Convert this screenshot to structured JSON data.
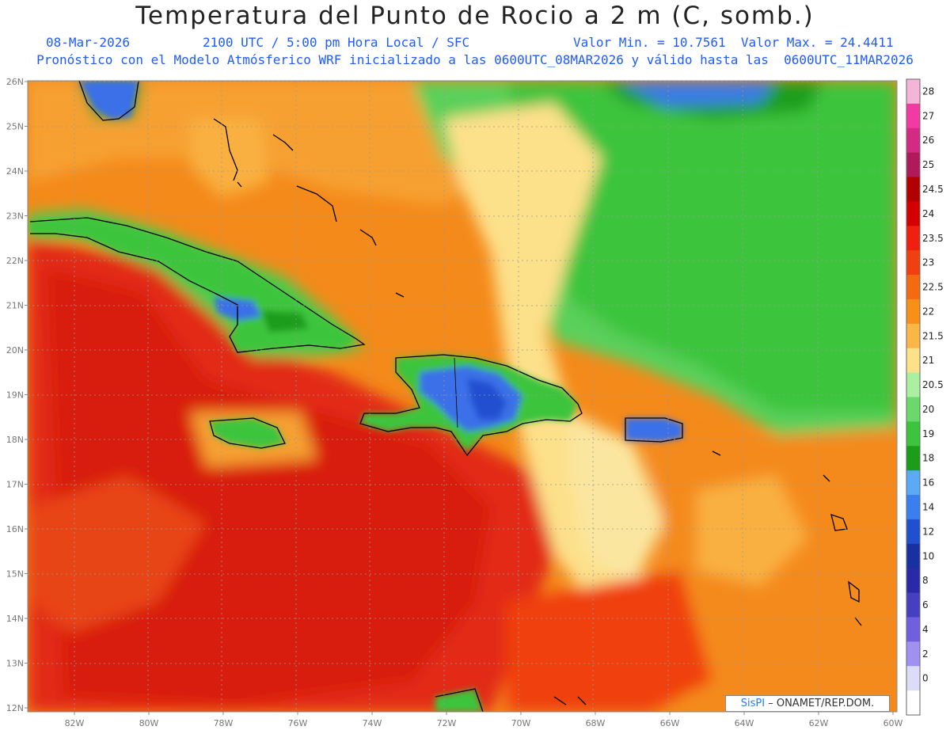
{
  "title": "Temperatura del Punto de Rocio a 2 m (C, somb.)",
  "date": "08-Mar-2026",
  "time_line": "2100 UTC / 5:00 pm Hora Local / SFC",
  "minmax": "Valor Min. = 10.7561  Valor Max. = 24.4411",
  "forecast_line": "Pronóstico con el Modelo Atmósferico WRF inicializado a las 0600UTC_08MAR2026 y válido hasta las  0600UTC_11MAR2026",
  "lat_labels": [
    "26N",
    "25N",
    "24N",
    "23N",
    "22N",
    "21N",
    "20N",
    "19N",
    "18N",
    "17N",
    "16N",
    "15N",
    "14N",
    "13N",
    "12N"
  ],
  "lon_labels": [
    "82W",
    "80W",
    "78W",
    "76W",
    "74W",
    "72W",
    "70W",
    "68W",
    "66W",
    "64W",
    "62W",
    "60W"
  ],
  "colorbar": {
    "labels": [
      "28",
      "27",
      "26",
      "25",
      "24.5",
      "24",
      "23.5",
      "23",
      "22.5",
      "22",
      "21.5",
      "21",
      "20.5",
      "20",
      "19",
      "18",
      "16",
      "14",
      "12",
      "10",
      "8",
      "6",
      "4",
      "2",
      "0"
    ],
    "colors": [
      "#f4b6d6",
      "#f23aa2",
      "#d42a84",
      "#b01a5a",
      "#b00000",
      "#d40000",
      "#f02010",
      "#f04010",
      "#f46a10",
      "#f89018",
      "#fbb648",
      "#fde08a",
      "#aaf0a0",
      "#6ad86a",
      "#3cc43c",
      "#1a9e1a",
      "#5aaaf8",
      "#3880f0",
      "#2050d0",
      "#1830a0",
      "#2a2aa8",
      "#4440c0",
      "#7060e0",
      "#a090f0",
      "#dcdcf8",
      "#ffffff"
    ]
  },
  "credit": {
    "brand": "SisPI",
    "org": "ONAMET/REP.DOM."
  },
  "colors": {
    "ocean_red": "#e02018",
    "orange": "#f48a1a",
    "light_orange": "#f9b040",
    "yellow": "#fde08a",
    "green": "#3cc43c",
    "blue": "#3a70e8",
    "sub_text": "#1f5cff"
  }
}
